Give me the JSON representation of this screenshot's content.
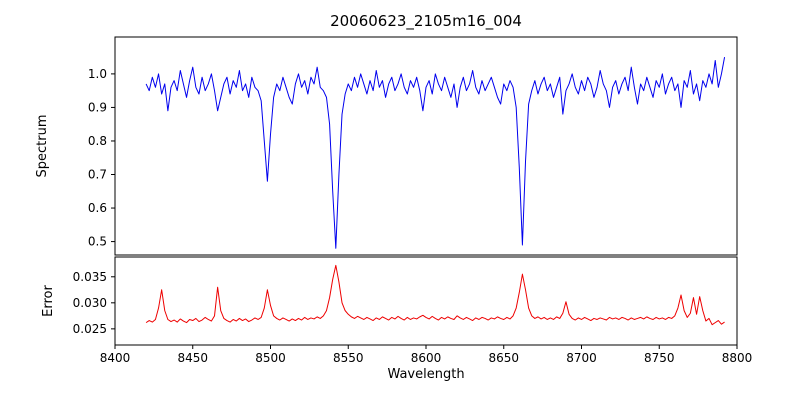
{
  "chart_data": {
    "type": "line",
    "title": "20060623_2105m16_004",
    "xlabel": "Wavelength",
    "xlim": [
      8400,
      8800
    ],
    "x_ticks": [
      8400,
      8450,
      8500,
      8550,
      8600,
      8650,
      8700,
      8750,
      8800
    ],
    "x_tick_labels": [
      "8400",
      "8450",
      "8500",
      "8550",
      "8600",
      "8650",
      "8700",
      "8750",
      "8800"
    ],
    "x_start": 8420,
    "x_step": 2,
    "grid": false,
    "legend": "none",
    "panels": [
      {
        "name": "spectrum",
        "ylabel": "Spectrum",
        "color": "#0000ee",
        "ylim": [
          0.46,
          1.11
        ],
        "y_ticks": [
          0.5,
          0.6,
          0.7,
          0.8,
          0.9,
          1.0
        ],
        "y_tick_labels": [
          "0.5",
          "0.6",
          "0.7",
          "0.8",
          "0.9",
          "1.0"
        ],
        "absorption_lines": [
          {
            "center": 8498,
            "min_value": 0.68
          },
          {
            "center": 8542,
            "min_value": 0.48
          },
          {
            "center": 8662,
            "min_value": 0.49
          }
        ],
        "values": [
          0.97,
          0.95,
          0.99,
          0.96,
          1.0,
          0.94,
          0.97,
          0.89,
          0.96,
          0.98,
          0.95,
          1.01,
          0.97,
          0.93,
          0.98,
          1.02,
          0.96,
          0.94,
          0.99,
          0.95,
          0.97,
          1.0,
          0.95,
          0.89,
          0.93,
          0.97,
          0.99,
          0.94,
          0.98,
          0.96,
          1.01,
          0.95,
          0.97,
          0.93,
          0.99,
          0.96,
          0.95,
          0.92,
          0.8,
          0.68,
          0.82,
          0.93,
          0.97,
          0.95,
          0.99,
          0.96,
          0.93,
          0.91,
          0.97,
          1.0,
          0.96,
          0.98,
          0.94,
          0.99,
          0.97,
          1.02,
          0.96,
          0.95,
          0.93,
          0.85,
          0.65,
          0.48,
          0.7,
          0.88,
          0.94,
          0.97,
          0.95,
          0.99,
          0.96,
          1.0,
          0.97,
          0.94,
          0.98,
          0.95,
          1.01,
          0.96,
          0.98,
          0.93,
          0.97,
          0.99,
          0.95,
          0.97,
          1.0,
          0.96,
          0.94,
          0.98,
          0.96,
          0.99,
          0.95,
          0.89,
          0.96,
          0.98,
          0.94,
          1.0,
          0.97,
          0.95,
          0.99,
          0.96,
          0.93,
          0.97,
          0.9,
          0.96,
          0.99,
          0.95,
          0.97,
          1.01,
          0.96,
          0.94,
          0.98,
          0.95,
          0.97,
          0.99,
          0.96,
          0.93,
          0.91,
          0.97,
          0.95,
          0.98,
          0.96,
          0.9,
          0.72,
          0.49,
          0.74,
          0.91,
          0.95,
          0.98,
          0.94,
          0.97,
          0.99,
          0.95,
          0.97,
          0.93,
          0.96,
          0.99,
          0.88,
          0.95,
          0.97,
          1.0,
          0.96,
          0.94,
          0.98,
          0.95,
          0.99,
          0.97,
          0.93,
          0.96,
          1.01,
          0.97,
          0.95,
          0.9,
          0.96,
          0.98,
          0.94,
          0.97,
          0.99,
          0.95,
          1.02,
          0.96,
          0.91,
          0.97,
          0.95,
          0.99,
          0.96,
          0.93,
          0.98,
          0.96,
          1.0,
          0.94,
          0.97,
          0.99,
          0.95,
          0.97,
          0.9,
          0.98,
          0.96,
          1.01,
          0.94,
          0.97,
          0.92,
          0.98,
          0.96,
          1.0,
          0.97,
          1.04,
          0.96,
          1.0,
          1.05
        ]
      },
      {
        "name": "error",
        "ylabel": "Error",
        "color": "#ee0000",
        "ylim": [
          0.0219,
          0.0388
        ],
        "y_ticks": [
          0.025,
          0.03,
          0.035
        ],
        "y_tick_labels": [
          "0.025",
          "0.030",
          "0.035"
        ],
        "values": [
          0.0262,
          0.0266,
          0.0263,
          0.0268,
          0.029,
          0.0325,
          0.0285,
          0.0268,
          0.0264,
          0.0267,
          0.0263,
          0.0269,
          0.0265,
          0.0262,
          0.0268,
          0.0266,
          0.027,
          0.0264,
          0.0267,
          0.0272,
          0.0268,
          0.0265,
          0.0275,
          0.033,
          0.0285,
          0.027,
          0.0266,
          0.0263,
          0.0268,
          0.0265,
          0.027,
          0.0266,
          0.0269,
          0.0264,
          0.0267,
          0.0271,
          0.0268,
          0.0272,
          0.029,
          0.0325,
          0.0295,
          0.0275,
          0.027,
          0.0267,
          0.0271,
          0.0268,
          0.0265,
          0.0269,
          0.0266,
          0.027,
          0.0267,
          0.0272,
          0.0268,
          0.0271,
          0.0269,
          0.0273,
          0.027,
          0.0275,
          0.0285,
          0.031,
          0.0345,
          0.0372,
          0.034,
          0.03,
          0.0285,
          0.0278,
          0.0273,
          0.027,
          0.0274,
          0.0271,
          0.0268,
          0.0272,
          0.0269,
          0.0266,
          0.0271,
          0.0268,
          0.0273,
          0.027,
          0.0267,
          0.0272,
          0.0269,
          0.0274,
          0.027,
          0.0267,
          0.0272,
          0.0268,
          0.0271,
          0.0269,
          0.0273,
          0.0276,
          0.0272,
          0.0269,
          0.0274,
          0.027,
          0.0267,
          0.0272,
          0.0269,
          0.0273,
          0.027,
          0.0268,
          0.0275,
          0.0271,
          0.0268,
          0.0272,
          0.0269,
          0.0266,
          0.0271,
          0.0268,
          0.0272,
          0.027,
          0.0267,
          0.0271,
          0.0269,
          0.0273,
          0.027,
          0.0268,
          0.0272,
          0.0269,
          0.0275,
          0.029,
          0.032,
          0.0355,
          0.0325,
          0.029,
          0.0275,
          0.027,
          0.0273,
          0.0269,
          0.0272,
          0.0268,
          0.0271,
          0.0268,
          0.0273,
          0.027,
          0.028,
          0.0302,
          0.0278,
          0.027,
          0.0267,
          0.0271,
          0.0268,
          0.0272,
          0.0269,
          0.0266,
          0.027,
          0.0268,
          0.0271,
          0.0269,
          0.0267,
          0.0272,
          0.0269,
          0.0271,
          0.0268,
          0.0272,
          0.027,
          0.0267,
          0.0271,
          0.0268,
          0.027,
          0.0272,
          0.0269,
          0.0273,
          0.027,
          0.0268,
          0.0272,
          0.0269,
          0.0271,
          0.0268,
          0.0272,
          0.027,
          0.0275,
          0.029,
          0.0315,
          0.0285,
          0.0272,
          0.028,
          0.031,
          0.0278,
          0.0312,
          0.0285,
          0.0265,
          0.027,
          0.0258,
          0.0262,
          0.0266,
          0.0259,
          0.0263
        ]
      }
    ]
  }
}
